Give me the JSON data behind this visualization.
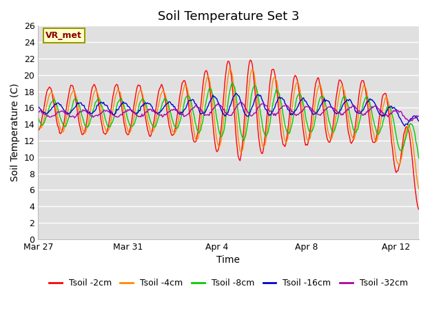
{
  "title": "Soil Temperature Set 3",
  "ylabel": "Soil Temperature (C)",
  "xlabel": "Time",
  "ylim": [
    0,
    26
  ],
  "xlim_days": [
    0,
    17
  ],
  "xtick_positions": [
    0,
    4,
    8,
    12,
    16
  ],
  "xtick_labels": [
    "Mar 27",
    "Mar 31",
    "Apr 4",
    "Apr 8",
    "Apr 12"
  ],
  "ytick_positions": [
    0,
    2,
    4,
    6,
    8,
    10,
    12,
    14,
    16,
    18,
    20,
    22,
    24,
    26
  ],
  "background_color": "#e0e0e0",
  "figure_background": "#ffffff",
  "grid_color": "#ffffff",
  "label_box_text": "VR_met",
  "label_box_color": "#ffffcc",
  "label_box_edge": "#999900",
  "series": [
    {
      "label": "Tsoil -2cm",
      "color": "#ff0000"
    },
    {
      "label": "Tsoil -4cm",
      "color": "#ff8800"
    },
    {
      "label": "Tsoil -8cm",
      "color": "#00cc00"
    },
    {
      "label": "Tsoil -16cm",
      "color": "#0000cc"
    },
    {
      "label": "Tsoil -32cm",
      "color": "#aa00aa"
    }
  ],
  "title_fontsize": 13,
  "axis_label_fontsize": 10,
  "tick_fontsize": 9,
  "legend_fontsize": 9
}
